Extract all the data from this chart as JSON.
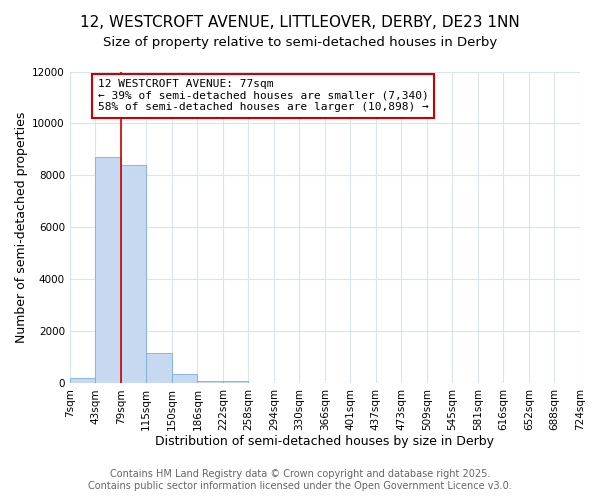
{
  "title": "12, WESTCROFT AVENUE, LITTLEOVER, DERBY, DE23 1NN",
  "subtitle": "Size of property relative to semi-detached houses in Derby",
  "xlabel": "Distribution of semi-detached houses by size in Derby",
  "ylabel": "Number of semi-detached properties",
  "footnote1": "Contains HM Land Registry data © Crown copyright and database right 2025.",
  "footnote2": "Contains public sector information licensed under the Open Government Licence v3.0.",
  "annotation_line1": "12 WESTCROFT AVENUE: 77sqm",
  "annotation_line2": "← 39% of semi-detached houses are smaller (7,340)",
  "annotation_line3": "58% of semi-detached houses are larger (10,898) →",
  "bin_labels": [
    "7sqm",
    "43sqm",
    "79sqm",
    "115sqm",
    "150sqm",
    "186sqm",
    "222sqm",
    "258sqm",
    "294sqm",
    "330sqm",
    "366sqm",
    "401sqm",
    "437sqm",
    "473sqm",
    "509sqm",
    "545sqm",
    "581sqm",
    "616sqm",
    "652sqm",
    "688sqm",
    "724sqm"
  ],
  "bar_heights": [
    200,
    8700,
    8400,
    1150,
    370,
    100,
    80,
    0,
    0,
    0,
    0,
    0,
    0,
    0,
    0,
    0,
    0,
    0,
    0,
    0
  ],
  "bar_color": "#c6d9f0",
  "bar_edge_color": "#7aadda",
  "property_line_x": 2,
  "property_line_color": "#cc0000",
  "ylim": [
    0,
    12000
  ],
  "bg_color": "#ffffff",
  "grid_color": "#d8e4f0",
  "title_fontsize": 11,
  "subtitle_fontsize": 9.5,
  "axis_label_fontsize": 9,
  "tick_fontsize": 7.5,
  "annotation_fontsize": 8,
  "footnote_fontsize": 7
}
